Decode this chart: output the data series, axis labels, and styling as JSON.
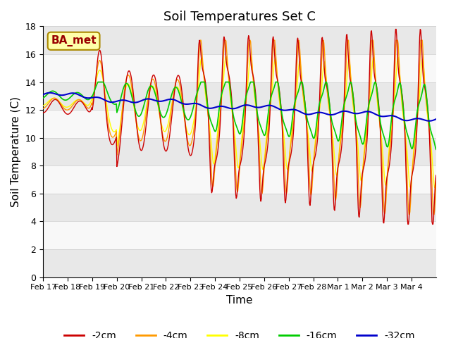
{
  "title": "Soil Temperatures Set C",
  "xlabel": "Time",
  "ylabel": "Soil Temperature (C)",
  "ylim": [
    0,
    18
  ],
  "yticks": [
    0,
    2,
    4,
    6,
    8,
    10,
    12,
    14,
    16,
    18
  ],
  "xtick_labels": [
    "Feb 17",
    "Feb 18",
    "Feb 19",
    "Feb 20",
    "Feb 21",
    "Feb 22",
    "Feb 23",
    "Feb 24",
    "Feb 25",
    "Feb 26",
    "Feb 27",
    "Feb 28",
    "Mar 1",
    "Mar 2",
    "Mar 3",
    "Mar 4"
  ],
  "colors": {
    "-2cm": "#cc0000",
    "-4cm": "#ff9900",
    "-8cm": "#ffff00",
    "-16cm": "#00cc00",
    "-32cm": "#0000cc"
  },
  "legend_labels": [
    "-2cm",
    "-4cm",
    "-8cm",
    "-16cm",
    "-32cm"
  ],
  "annotation_text": "BA_met",
  "annotation_bg": "#ffffaa",
  "annotation_border": "#aa8800",
  "background_alternating": [
    "#e8e8e8",
    "#f8f8f8"
  ],
  "title_fontsize": 13,
  "axis_label_fontsize": 11
}
